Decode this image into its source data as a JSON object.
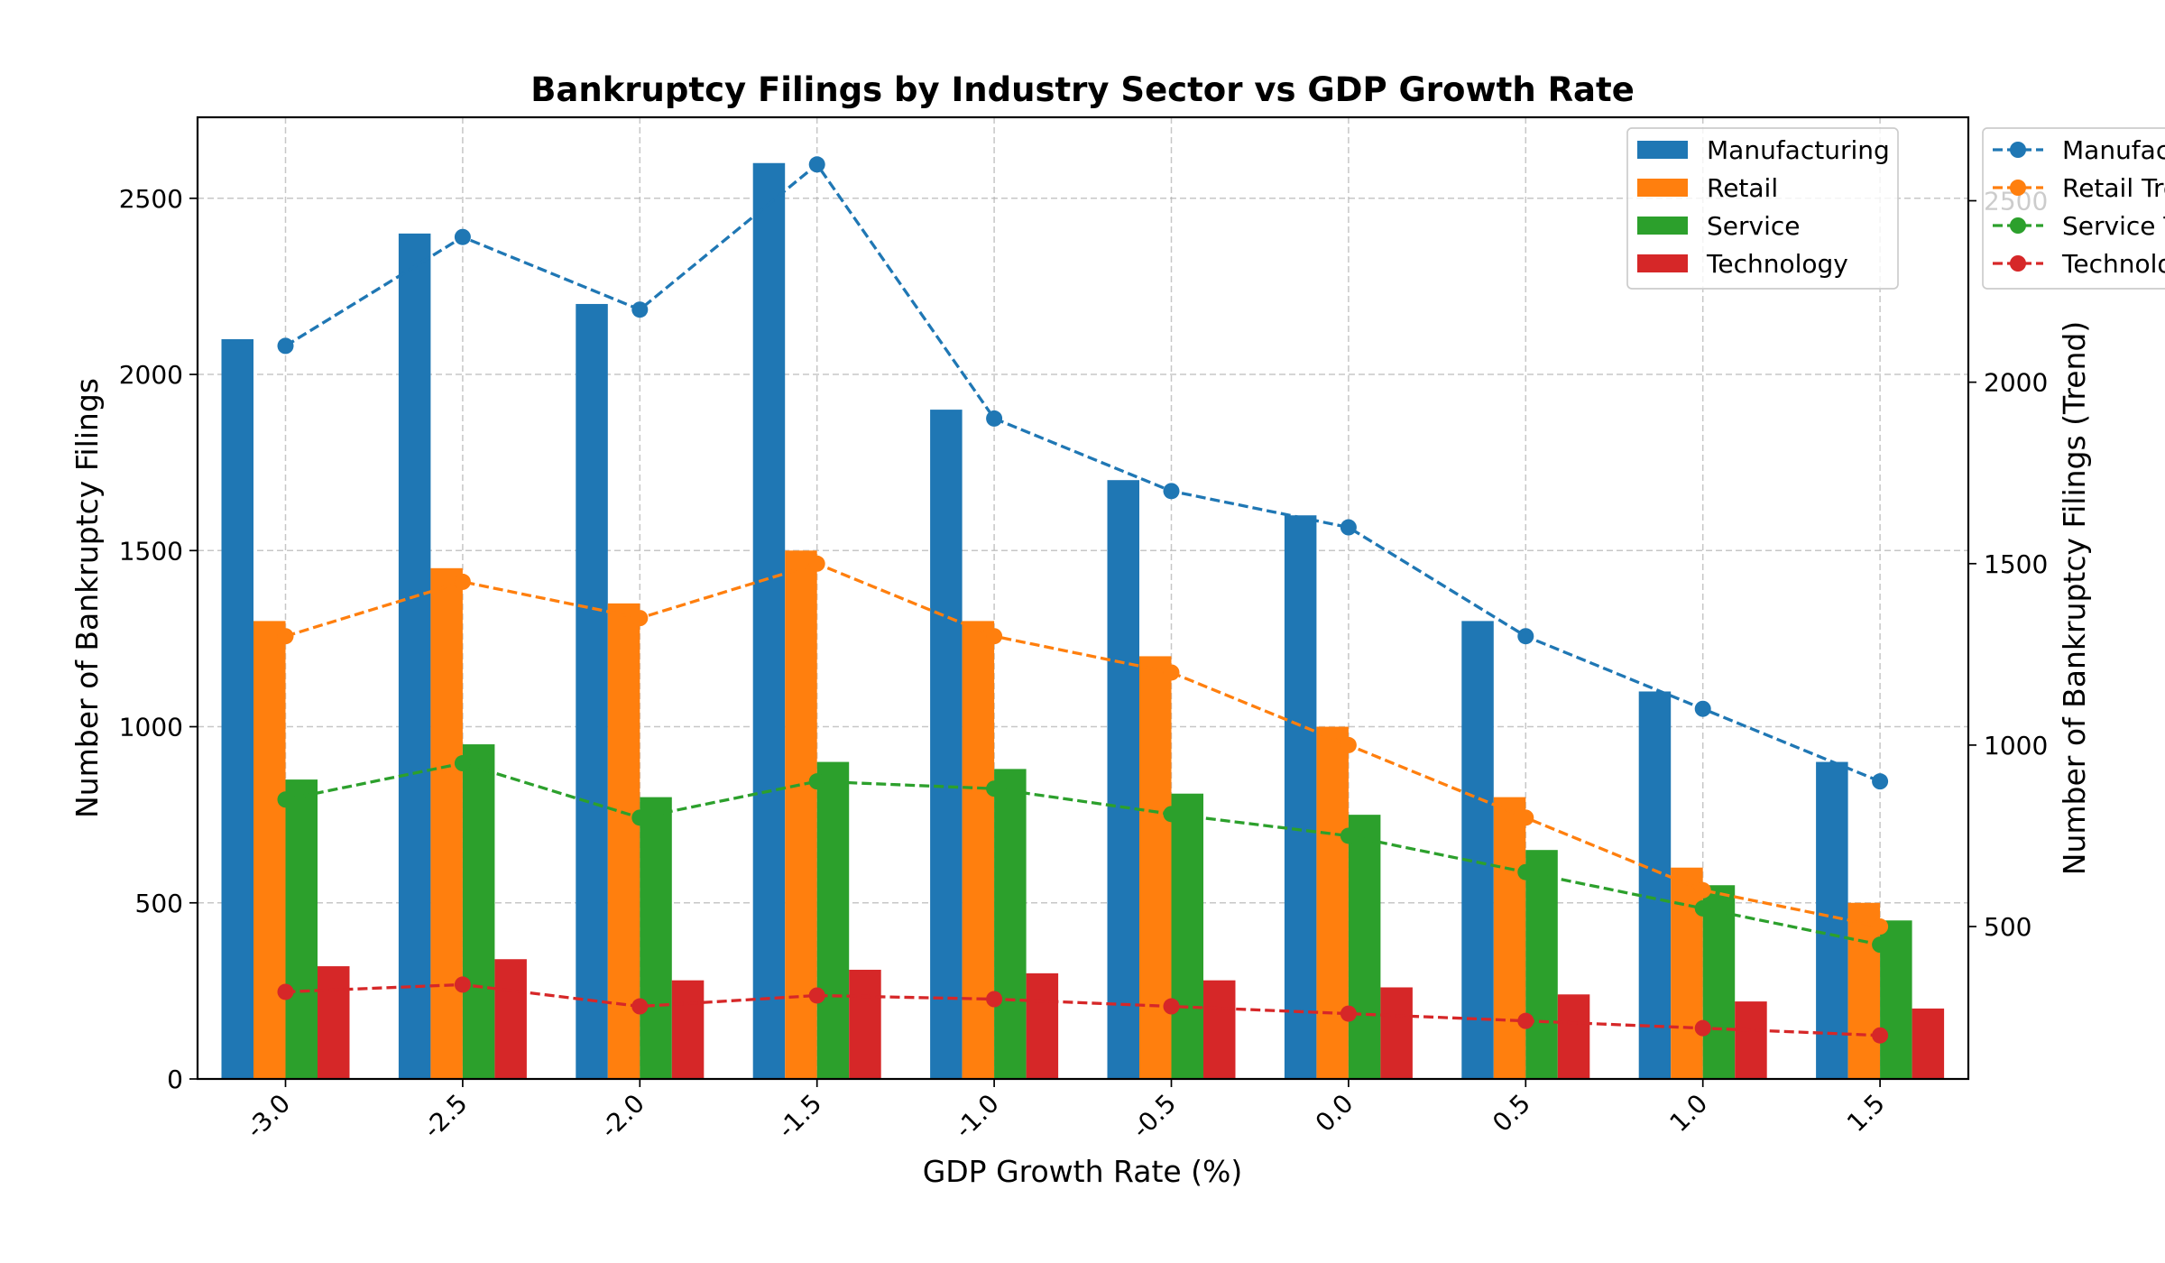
{
  "chart_data": {
    "type": "bar",
    "title": "Bankruptcy Filings by Industry Sector vs GDP Growth Rate",
    "xlabel": "GDP Growth Rate (%)",
    "ylabel": "Number of Bankruptcy Filings",
    "y2label": "Number of Bankruptcy Filings (Trend)",
    "categories": [
      "-3.0",
      "-2.5",
      "-2.0",
      "-1.5",
      "-1.0",
      "-0.5",
      "0.0",
      "0.5",
      "1.0",
      "1.5"
    ],
    "ylim": [
      0,
      2730
    ],
    "y2lim": [
      80,
      2730
    ],
    "yticks": [
      0,
      500,
      1000,
      1500,
      2000,
      2500
    ],
    "y2ticks": [
      500,
      1000,
      1500,
      2000,
      2500
    ],
    "grid": true,
    "legend_bars_position": "top-right",
    "legend_lines_position": "outside-right",
    "series": [
      {
        "name": "Manufacturing",
        "color": "#1f77b4",
        "values": [
          2100,
          2400,
          2200,
          2600,
          1900,
          1700,
          1600,
          1300,
          1100,
          900
        ]
      },
      {
        "name": "Retail",
        "color": "#ff7f0e",
        "values": [
          1300,
          1450,
          1350,
          1500,
          1300,
          1200,
          1000,
          800,
          600,
          500
        ]
      },
      {
        "name": "Service",
        "color": "#2ca02c",
        "values": [
          850,
          950,
          800,
          900,
          880,
          810,
          750,
          650,
          550,
          450
        ]
      },
      {
        "name": "Technology",
        "color": "#d62728",
        "values": [
          320,
          340,
          280,
          310,
          300,
          280,
          260,
          240,
          220,
          200
        ]
      }
    ],
    "trend_series": [
      {
        "name": "Manufacturing Trend",
        "color": "#1f77b4",
        "values": [
          2100,
          2400,
          2200,
          2600,
          1900,
          1700,
          1600,
          1300,
          1100,
          900
        ]
      },
      {
        "name": "Retail Trend",
        "color": "#ff7f0e",
        "values": [
          1300,
          1450,
          1350,
          1500,
          1300,
          1200,
          1000,
          800,
          600,
          500
        ]
      },
      {
        "name": "Service Trend",
        "color": "#2ca02c",
        "values": [
          850,
          950,
          800,
          900,
          880,
          810,
          750,
          650,
          550,
          450
        ]
      },
      {
        "name": "Technology Trend",
        "color": "#d62728",
        "values": [
          320,
          340,
          280,
          310,
          300,
          280,
          260,
          240,
          220,
          200
        ]
      }
    ]
  }
}
